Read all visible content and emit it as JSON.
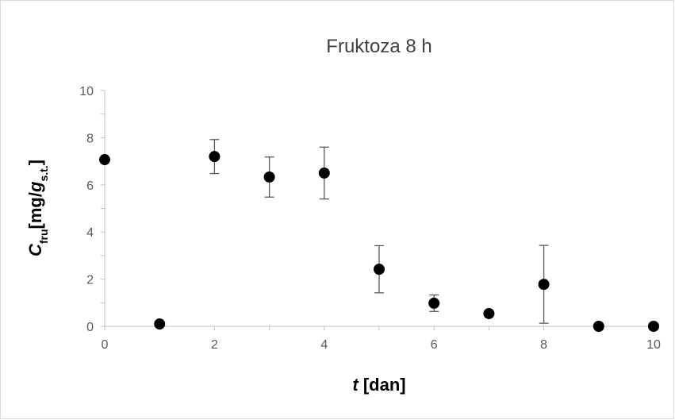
{
  "chart_data": {
    "type": "scatter",
    "title": "Fruktoza 8 h",
    "xlabel": {
      "symbol": "t",
      "rest": " [dan]"
    },
    "ylabel": {
      "symbol": "C",
      "sub": "fru",
      "unit_open": "[mg/",
      "unit_symbol": "g",
      "unit_sub": "s.t.",
      "unit_close": "]"
    },
    "x": [
      0,
      1,
      2,
      3,
      4,
      5,
      6,
      7,
      8,
      9,
      10
    ],
    "series": [
      {
        "color": "#000000",
        "values": [
          7.07,
          0.1,
          7.2,
          6.33,
          6.5,
          2.42,
          0.98,
          0.54,
          1.78,
          0,
          0
        ],
        "errors": [
          0,
          0,
          0.72,
          0.85,
          1.1,
          1.0,
          0.35,
          0,
          1.65,
          0,
          0
        ]
      }
    ],
    "xlim": [
      0,
      10
    ],
    "xticks": [
      0,
      2,
      4,
      6,
      8,
      10
    ],
    "xticks_minor": [
      1,
      3,
      5,
      7,
      9
    ],
    "ylim": [
      0,
      10
    ],
    "yticks": [
      0,
      2,
      4,
      6,
      8,
      10
    ],
    "yticks_minor": [
      1,
      3,
      5,
      7,
      9
    ],
    "grid": false
  }
}
